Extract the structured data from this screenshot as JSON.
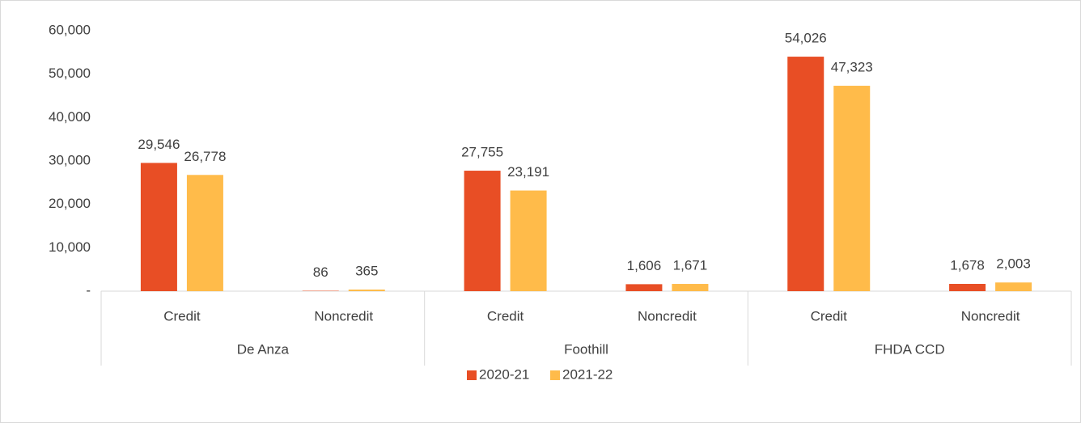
{
  "chart_data": {
    "type": "bar",
    "categories": [
      "Credit",
      "Noncredit",
      "Credit",
      "Noncredit",
      "Credit",
      "Noncredit"
    ],
    "category_groups": [
      "De Anza",
      "Foothill",
      "FHDA CCD"
    ],
    "series": [
      {
        "name": "2020-21",
        "color": "#e84e25",
        "values": [
          29546,
          86,
          27755,
          1606,
          54026,
          1678
        ],
        "value_labels": [
          "29,546",
          "86",
          "27,755",
          "1,606",
          "54,026",
          "1,678"
        ]
      },
      {
        "name": "2021-22",
        "color": "#ffbb4a",
        "values": [
          26778,
          365,
          23191,
          1671,
          47323,
          2003
        ],
        "value_labels": [
          "26,778",
          "365",
          "23,191",
          "1,671",
          "47,323",
          "2,003"
        ]
      }
    ],
    "ylim": [
      0,
      60000
    ],
    "yticks": [
      {
        "value": 0,
        "label": "-"
      },
      {
        "value": 10000,
        "label": "10,000"
      },
      {
        "value": 20000,
        "label": "20,000"
      },
      {
        "value": 30000,
        "label": "30,000"
      },
      {
        "value": 40000,
        "label": "40,000"
      },
      {
        "value": 50000,
        "label": "50,000"
      },
      {
        "value": 60000,
        "label": "60,000"
      }
    ],
    "grid": false,
    "legend": "bottom"
  }
}
